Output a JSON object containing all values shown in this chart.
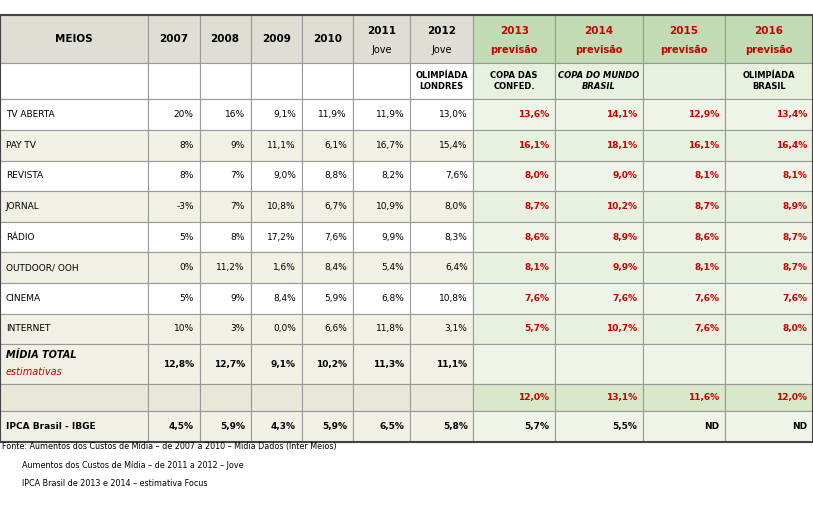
{
  "col_widths_raw": [
    1.6,
    0.55,
    0.55,
    0.55,
    0.55,
    0.62,
    0.68,
    0.88,
    0.95,
    0.88,
    0.95
  ],
  "header_labels": [
    "MEIOS",
    "2007",
    "2008",
    "2009",
    "2010",
    "2011",
    "2012",
    "2013",
    "2014",
    "2015",
    "2016"
  ],
  "header_sub": [
    "",
    "",
    "",
    "",
    "",
    "Jove",
    "Jove",
    "previsão",
    "previsão",
    "previsão",
    "previsão"
  ],
  "subheader_texts": [
    "",
    "",
    "",
    "",
    "",
    "",
    "OLIMPÍADA\nLONDRES",
    "COPA DAS\nCONFED.",
    "COPA DO MUNDO\nBRASIL",
    "",
    "OLIMPÍADA\nBRASIL"
  ],
  "subheader_italic": [
    false,
    false,
    false,
    false,
    false,
    false,
    false,
    false,
    true,
    false,
    false
  ],
  "data_rows": [
    [
      "TV ABERTA",
      "20%",
      "16%",
      "9,1%",
      "11,9%",
      "11,9%",
      "13,0%",
      "13,6%",
      "14,1%",
      "12,9%",
      "13,4%"
    ],
    [
      "PAY TV",
      "8%",
      "9%",
      "11,1%",
      "6,1%",
      "16,7%",
      "15,4%",
      "16,1%",
      "18,1%",
      "16,1%",
      "16,4%"
    ],
    [
      "REVISTA",
      "8%",
      "7%",
      "9,0%",
      "8,8%",
      "8,2%",
      "7,6%",
      "8,0%",
      "9,0%",
      "8,1%",
      "8,1%"
    ],
    [
      "JORNAL",
      "-3%",
      "7%",
      "10,8%",
      "6,7%",
      "10,9%",
      "8,0%",
      "8,7%",
      "10,2%",
      "8,7%",
      "8,9%"
    ],
    [
      "RÁDIO",
      "5%",
      "8%",
      "17,2%",
      "7,6%",
      "9,9%",
      "8,3%",
      "8,6%",
      "8,9%",
      "8,6%",
      "8,7%"
    ],
    [
      "OUTDOOR/ OOH",
      "0%",
      "11,2%",
      "1,6%",
      "8,4%",
      "5,4%",
      "6,4%",
      "8,1%",
      "9,9%",
      "8,1%",
      "8,7%"
    ],
    [
      "CINEMA",
      "5%",
      "9%",
      "8,4%",
      "5,9%",
      "6,8%",
      "10,8%",
      "7,6%",
      "7,6%",
      "7,6%",
      "7,6%"
    ],
    [
      "INTERNET",
      "10%",
      "3%",
      "0,0%",
      "6,6%",
      "11,8%",
      "3,1%",
      "5,7%",
      "10,7%",
      "7,6%",
      "8,0%"
    ]
  ],
  "midia_row": [
    "MÍDIA TOTAL",
    "12,8%",
    "12,7%",
    "9,1%",
    "10,2%",
    "11,3%",
    "11,1%",
    "",
    "",
    "",
    ""
  ],
  "est_row": [
    "",
    "",
    "",
    "",
    "",
    "",
    "",
    "12,0%",
    "13,1%",
    "11,6%",
    "12,0%"
  ],
  "ipca_row": [
    "IPCA Brasil - IBGE",
    "4,5%",
    "5,9%",
    "4,3%",
    "5,9%",
    "6,5%",
    "5,8%",
    "5,7%",
    "5,5%",
    "ND",
    "ND"
  ],
  "footer": [
    "Fonte: Aumentos dos Custos de Mídia – de 2007 a 2010 – Mídia Dados (Inter Meios)",
    "        Aumentos dos Custos de Mídia – de 2011 a 2012 – Jove",
    "        IPCA Brasil de 2013 e 2014 – estimativa Focus"
  ],
  "header_bg_left": "#deded4",
  "header_bg_right": "#c2dbb4",
  "header_tc_left": "#000000",
  "header_tc_right": "#cc0000",
  "subheader_bg_left": "#ffffff",
  "subheader_bg_right": "#e8f0e0",
  "data_bg_even": "#ffffff",
  "data_bg_odd": "#f0f0e4",
  "data_bg_right_even": "#eef5e8",
  "data_bg_right_odd": "#e8f0e0",
  "midia_bg_left": "#f0f0e4",
  "midia_bg_right": "#eef5e8",
  "est_bg_left": "#e8e8d8",
  "est_bg_right": "#d8e8c8",
  "ipca_bg_left": "#f0f0e4",
  "ipca_bg_right": "#eef5e8",
  "border_color": "#999999",
  "red_color": "#cc0000",
  "black_color": "#000000",
  "lw": 0.8
}
